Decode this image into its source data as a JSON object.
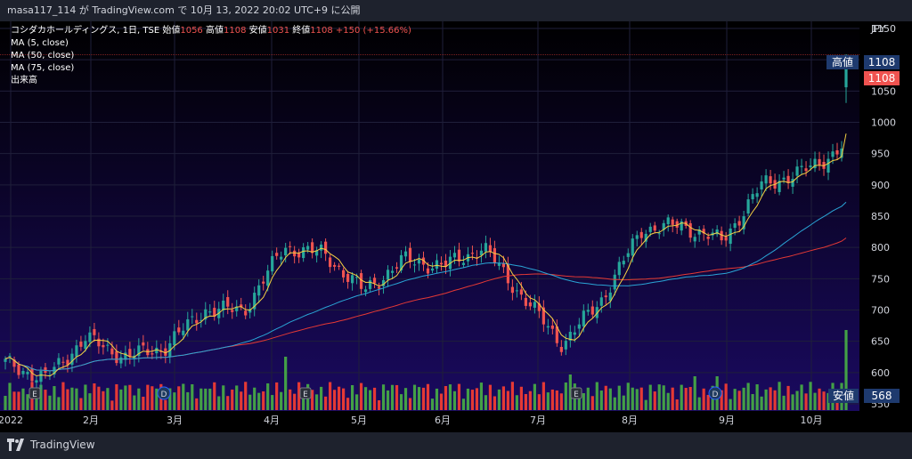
{
  "header": {
    "published_line": "masa117_114 が TradingView.com で 10月 13, 2022 20:02 UTC+9 に公開"
  },
  "legend": {
    "symbol": "コシダカホールディングス, 1日, TSE",
    "open_label": "始値",
    "open_value": "1056",
    "high_label": "高値",
    "high_value": "1108",
    "low_label": "安値",
    "low_value": "1031",
    "close_label": "終値",
    "close_value": "1108",
    "change": "+150 (+15.66%)",
    "ma5": "MA (5, close)",
    "ma50": "MA (50, close)",
    "ma75": "MA (75, close)",
    "volume": "出来高"
  },
  "price_axis": {
    "currency": "JPY",
    "ticks": [
      "1150",
      "1100",
      "1050",
      "1000",
      "950",
      "900",
      "850",
      "800",
      "750",
      "700",
      "650",
      "600",
      "550"
    ],
    "high_tag_label": "高値",
    "high_tag_value": "1108",
    "last_value": "1108",
    "low_tag_label": "安値",
    "low_tag_value": "568"
  },
  "time_axis": {
    "labels": [
      "2022",
      "2月",
      "3月",
      "4月",
      "5月",
      "6月",
      "7月",
      "8月",
      "9月",
      "10月"
    ]
  },
  "events": [
    {
      "type": "E",
      "marker": "E"
    },
    {
      "type": "D",
      "marker": "D"
    },
    {
      "type": "E",
      "marker": "E"
    },
    {
      "type": "E",
      "marker": "E"
    },
    {
      "type": "D",
      "marker": "D"
    }
  ],
  "footer": {
    "brand": "TradingView"
  },
  "colors": {
    "up": "#26a69a",
    "down": "#ef5350",
    "ma5": "#f5d142",
    "ma50": "#2aa5d6",
    "ma75": "#e53935",
    "volume_up": "#43a047",
    "volume_down": "#e53935",
    "background_top": "#000000",
    "background_bottom": "#1a0a60"
  },
  "chart_data": {
    "type": "candlestick",
    "title": "コシダカホールディングス, 1日, TSE",
    "ylabel": "JPY",
    "ylim": [
      530,
      1150
    ],
    "x_labels": [
      "2022",
      "2月",
      "3月",
      "4月",
      "5月",
      "6月",
      "7月",
      "8月",
      "9月",
      "10月"
    ],
    "series_anchors": [
      {
        "date": "2022-01",
        "close": 615
      },
      {
        "date": "2022-01-mid",
        "close": 590
      },
      {
        "date": "2022-02",
        "close": 655
      },
      {
        "date": "2022-02-end",
        "close": 625
      },
      {
        "date": "2022-03-mid",
        "close": 640
      },
      {
        "date": "2022-04",
        "close": 700
      },
      {
        "date": "2022-04-mid",
        "close": 700
      },
      {
        "date": "2022-04-end",
        "close": 800
      },
      {
        "date": "2022-05",
        "close": 790
      },
      {
        "date": "2022-05-mid",
        "close": 730
      },
      {
        "date": "2022-06",
        "close": 780
      },
      {
        "date": "2022-06-mid",
        "close": 770
      },
      {
        "date": "2022-07",
        "close": 800
      },
      {
        "date": "2022-07-mid",
        "close": 720
      },
      {
        "date": "2022-07-end",
        "close": 645
      },
      {
        "date": "2022-08",
        "close": 720
      },
      {
        "date": "2022-08-mid",
        "close": 830
      },
      {
        "date": "2022-09",
        "close": 835
      },
      {
        "date": "2022-09-mid",
        "close": 810
      },
      {
        "date": "2022-09-end",
        "close": 900
      },
      {
        "date": "2022-10",
        "close": 920
      },
      {
        "date": "2022-10-12",
        "close": 958
      },
      {
        "date": "2022-10-13",
        "close": 1108
      }
    ],
    "last_candle": {
      "open": 1056,
      "high": 1108,
      "low": 1031,
      "close": 1108
    },
    "ma_series": [
      "MA (5, close)",
      "MA (50, close)",
      "MA (75, close)"
    ],
    "volume_low_tag": 568,
    "grid": true
  }
}
